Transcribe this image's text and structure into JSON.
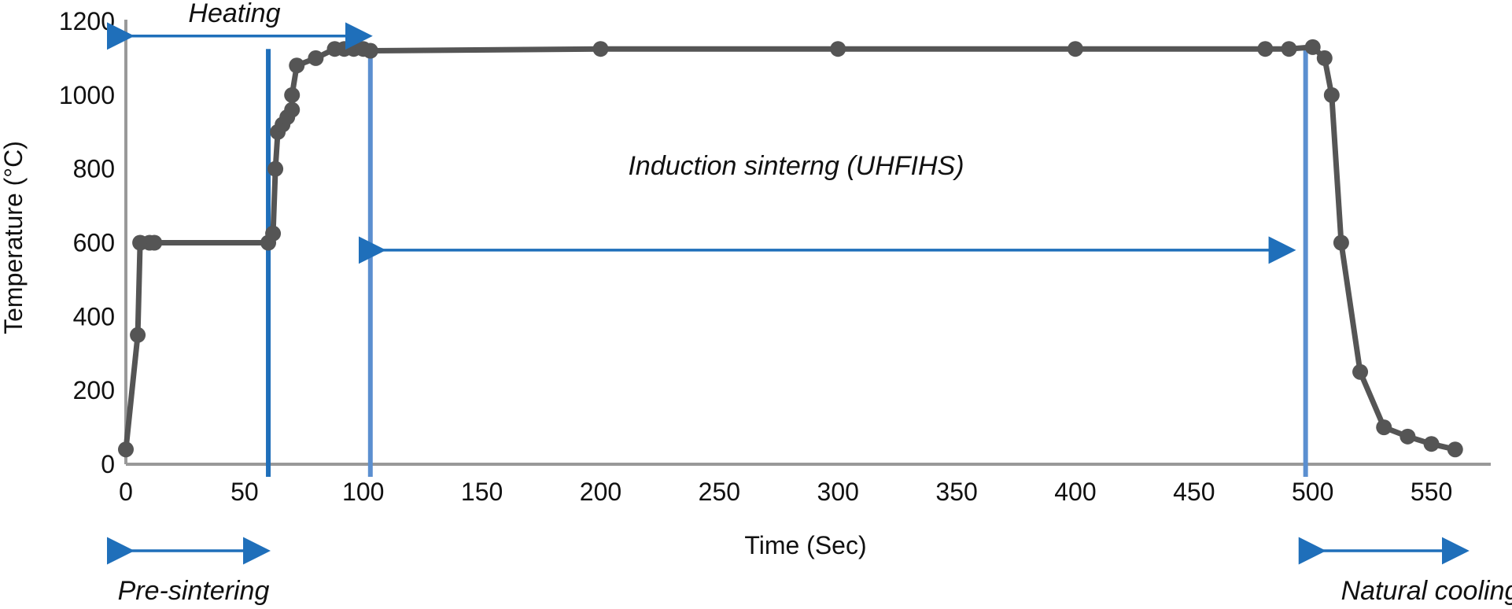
{
  "chart_data": {
    "type": "line",
    "xlabel": "Time (Sec)",
    "ylabel": "Temperature (°C)",
    "xlim": [
      0,
      575
    ],
    "ylim": [
      0,
      1200
    ],
    "x_ticks": [
      0,
      50,
      100,
      150,
      200,
      250,
      300,
      350,
      400,
      450,
      500,
      550
    ],
    "y_ticks": [
      0,
      200,
      400,
      600,
      800,
      1000,
      1200
    ],
    "grid": false,
    "legend": "none",
    "series": [
      {
        "color": "#555555",
        "points": [
          [
            0,
            40
          ],
          [
            5,
            350
          ],
          [
            6,
            600
          ],
          [
            10,
            600
          ],
          [
            12,
            600
          ],
          [
            60,
            600
          ],
          [
            62,
            625
          ],
          [
            63,
            800
          ],
          [
            64,
            900
          ],
          [
            66,
            920
          ],
          [
            68,
            940
          ],
          [
            70,
            960
          ],
          [
            70,
            1000
          ],
          [
            72,
            1080
          ],
          [
            80,
            1100
          ],
          [
            88,
            1125
          ],
          [
            92,
            1125
          ],
          [
            96,
            1125
          ],
          [
            100,
            1125
          ],
          [
            103,
            1120
          ],
          [
            200,
            1125
          ],
          [
            300,
            1125
          ],
          [
            400,
            1125
          ],
          [
            480,
            1125
          ],
          [
            490,
            1125
          ],
          [
            500,
            1130
          ],
          [
            505,
            1100
          ],
          [
            508,
            1000
          ],
          [
            512,
            600
          ],
          [
            520,
            250
          ],
          [
            530,
            100
          ],
          [
            540,
            75
          ],
          [
            550,
            55
          ],
          [
            560,
            40
          ]
        ]
      }
    ],
    "markers": {
      "vertical_lines": [
        {
          "x": 60,
          "color": "#1f6fba"
        },
        {
          "x": 103,
          "color": "#5b8fd0"
        },
        {
          "x": 497,
          "color": "#5b8fd0"
        }
      ],
      "arrows": [
        {
          "x_from": 0,
          "x_to": 103,
          "y": 1160,
          "label_key": "heating"
        },
        {
          "x_from": 106,
          "x_to": 492,
          "y": 580,
          "label_key": "induction"
        },
        {
          "x_from": 0,
          "x_to": 60,
          "y": -230,
          "label_key": "presintering"
        },
        {
          "x_from": 502,
          "x_to": 565,
          "y": -230,
          "label_key": "cooling"
        }
      ],
      "arrow_color": "#1f6fba"
    },
    "annotations": {
      "heating": "Heating",
      "induction": "Induction sinterng (UHFIHS)",
      "presintering": "Pre-sintering",
      "cooling": "Natural cooling"
    }
  }
}
